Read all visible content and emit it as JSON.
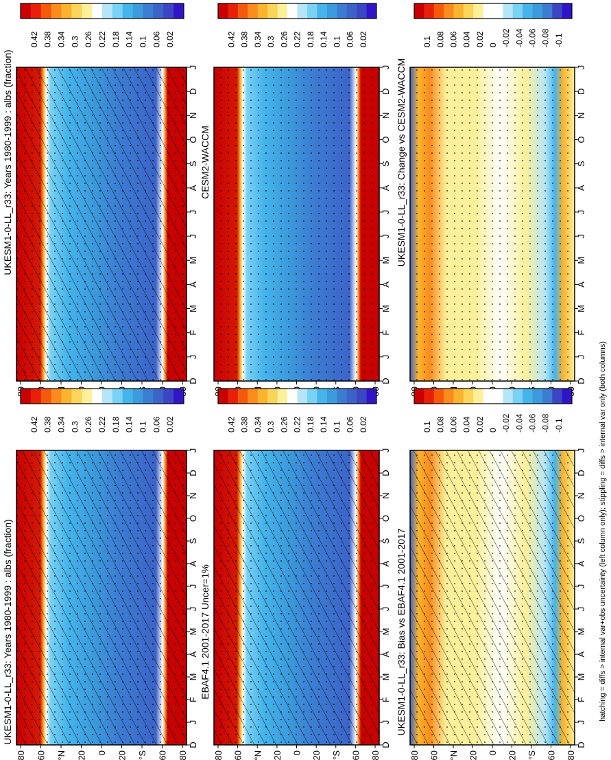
{
  "footnote": "hatching = diffs > internal var+obs uncertainty (left column only); stippling = diffs > internal var only (both columns)",
  "month_labels": [
    "D",
    "J",
    "F",
    "M",
    "A",
    "M",
    "J",
    "J",
    "A",
    "S",
    "O",
    "N",
    "D",
    "J"
  ],
  "lat_labels": [
    "80",
    "60",
    "°N",
    "20",
    "0",
    "20",
    "°S",
    "60",
    "80"
  ],
  "colorbars": {
    "albedo": {
      "labels": [
        "0.42",
        "0.38",
        "0.34",
        "0.3",
        "0.26",
        "0.22",
        "0.18",
        "0.14",
        "0.1",
        "0.06",
        "0.02"
      ],
      "colors": [
        "#c80000",
        "#e8200a",
        "#f55a0a",
        "#fa8c1e",
        "#fbb42d",
        "#fbd45a",
        "#fdf09a",
        "#ffffff",
        "#b4e6f8",
        "#78d2f5",
        "#46b4eb",
        "#3c9bdc",
        "#3c7dd2",
        "#3c64c8",
        "#3c46c3",
        "#3214c8"
      ]
    },
    "diff": {
      "labels": [
        "0.1",
        "0.08",
        "0.06",
        "0.04",
        "0.02",
        "0",
        "-0.02",
        "-0.04",
        "-0.06",
        "-0.08",
        "-0.1"
      ],
      "colors": [
        "#c80000",
        "#e8200a",
        "#f55a0a",
        "#fa8c1e",
        "#fbb42d",
        "#fbd45a",
        "#fdf09a",
        "#ffffff",
        "#ffffff",
        "#b4e6f8",
        "#78d2f5",
        "#46b4eb",
        "#3c9bdc",
        "#3c7dd2",
        "#3c46c3",
        "#3214c8"
      ]
    }
  },
  "panels": [
    {
      "id": "ukesm-clim",
      "title": "UKESM1-0-LL_r33: Years 1980-1999 : albs (fraction)",
      "kind": "albedo",
      "hatch": true
    },
    {
      "id": "cesm2",
      "title": "CESM2-WACCM",
      "kind": "albedo",
      "hatch": false
    },
    {
      "id": "change",
      "title": "UKESM1-0-LL_r33: Change vs CESM2-WACCM",
      "kind": "diff",
      "hatch": false
    },
    {
      "id": "ukesm-clim-left",
      "title": "UKESM1-0-LL_r33: Years 1980-1999 : albs (fraction)",
      "kind": "albedo",
      "hatch": true
    },
    {
      "id": "ebaf",
      "title": "EBAF4.1 2001-2017 Uncer=1%",
      "kind": "albedo",
      "hatch": true
    },
    {
      "id": "bias",
      "title": "UKESM1-0-LL_r33: Bias vs EBAF4.1 2001-2017",
      "kind": "diff",
      "hatch": true
    }
  ],
  "chart_data": [
    {
      "type": "heatmap",
      "title": "UKESM1-0-LL_r33: Years 1980-1999 : albs (fraction)",
      "x_labels": [
        "D",
        "J",
        "F",
        "M",
        "A",
        "M",
        "J",
        "J",
        "A",
        "S",
        "O",
        "N",
        "D",
        "J"
      ],
      "y_labels": [
        "80",
        "60",
        "°N",
        "20",
        "0",
        "20",
        "°S",
        "60",
        "80"
      ],
      "colorbar": [
        "0.42",
        "0.38",
        "0.34",
        "0.3",
        "0.26",
        "0.22",
        "0.18",
        "0.14",
        "0.1",
        "0.06",
        "0.02"
      ]
    },
    {
      "type": "heatmap",
      "title": "CESM2-WACCM",
      "x_labels": [
        "D",
        "J",
        "F",
        "M",
        "A",
        "M",
        "J",
        "J",
        "A",
        "S",
        "O",
        "N",
        "D",
        "J"
      ],
      "y_labels": [
        "80",
        "60",
        "°N",
        "20",
        "0",
        "20",
        "°S",
        "60",
        "80"
      ],
      "colorbar": [
        "0.42",
        "0.38",
        "0.34",
        "0.3",
        "0.26",
        "0.22",
        "0.18",
        "0.14",
        "0.1",
        "0.06",
        "0.02"
      ]
    },
    {
      "type": "heatmap",
      "title": "UKESM1-0-LL_r33: Change vs CESM2-WACCM",
      "x_labels": [
        "D",
        "J",
        "F",
        "M",
        "A",
        "M",
        "J",
        "J",
        "A",
        "S",
        "O",
        "N",
        "D",
        "J"
      ],
      "y_labels": [
        "80",
        "60",
        "°N",
        "20",
        "0",
        "20",
        "°S",
        "60",
        "80"
      ],
      "colorbar": [
        "0.1",
        "0.08",
        "0.06",
        "0.04",
        "0.02",
        "0",
        "-0.02",
        "-0.04",
        "-0.06",
        "-0.08",
        "-0.1"
      ]
    },
    {
      "type": "heatmap",
      "title": "UKESM1-0-LL_r33: Years 1980-1999 : albs (fraction)",
      "x_labels": [
        "D",
        "J",
        "F",
        "M",
        "A",
        "M",
        "J",
        "J",
        "A",
        "S",
        "O",
        "N",
        "D",
        "J"
      ],
      "y_labels": [
        "80",
        "60",
        "°N",
        "20",
        "0",
        "20",
        "°S",
        "60",
        "80"
      ],
      "colorbar": [
        "0.42",
        "0.38",
        "0.34",
        "0.3",
        "0.26",
        "0.22",
        "0.18",
        "0.14",
        "0.1",
        "0.06",
        "0.02"
      ]
    },
    {
      "type": "heatmap",
      "title": "EBAF4.1 2001-2017 Uncer=1%",
      "x_labels": [
        "D",
        "J",
        "F",
        "M",
        "A",
        "M",
        "J",
        "J",
        "A",
        "S",
        "O",
        "N",
        "D",
        "J"
      ],
      "y_labels": [
        "80",
        "60",
        "°N",
        "20",
        "0",
        "20",
        "°S",
        "60",
        "80"
      ],
      "colorbar": [
        "0.42",
        "0.38",
        "0.34",
        "0.3",
        "0.26",
        "0.22",
        "0.18",
        "0.14",
        "0.1",
        "0.06",
        "0.02"
      ]
    },
    {
      "type": "heatmap",
      "title": "UKESM1-0-LL_r33: Bias vs EBAF4.1 2001-2017",
      "x_labels": [
        "D",
        "J",
        "F",
        "M",
        "A",
        "M",
        "J",
        "J",
        "A",
        "S",
        "O",
        "N",
        "D",
        "J"
      ],
      "y_labels": [
        "80",
        "60",
        "°N",
        "20",
        "0",
        "20",
        "°S",
        "60",
        "80"
      ],
      "colorbar": [
        "0.1",
        "0.08",
        "0.06",
        "0.04",
        "0.02",
        "0",
        "-0.02",
        "-0.04",
        "-0.06",
        "-0.08",
        "-0.1"
      ]
    }
  ]
}
